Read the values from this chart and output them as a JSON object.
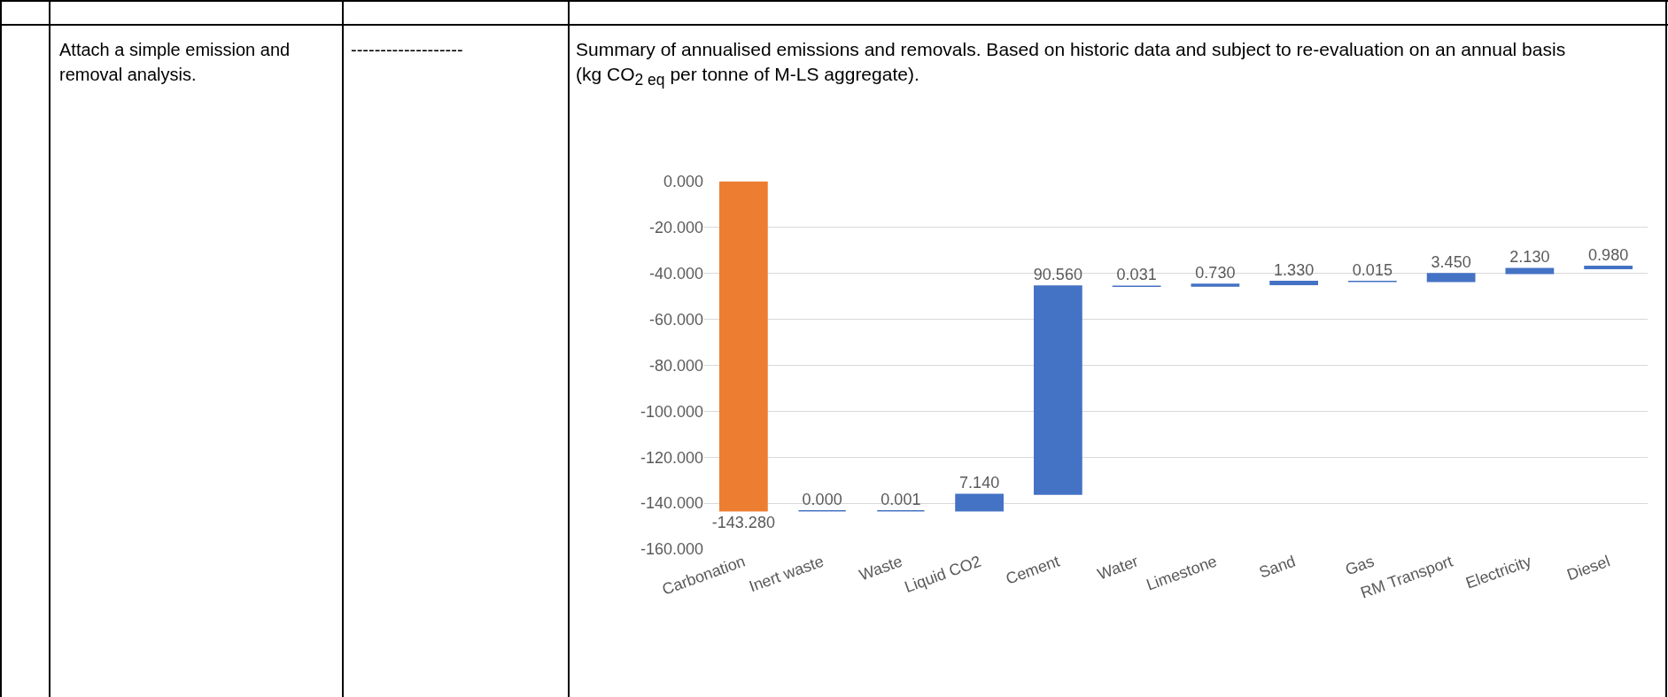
{
  "chart_data": {
    "type": "bar",
    "title": "Summary of annualised emissions and removals.  Based on historic data and subject to re-evaluation on an annual basis (kg CO$_{2 eq}$ per tonne of M-LS aggregate).",
    "annotations": [
      "Attach a simple emission and removal analysis.",
      "-------------------"
    ],
    "categories": [
      "Carbonation",
      "Inert waste",
      "Waste",
      "Liquid CO2",
      "Cement",
      "Water",
      "Limestone",
      "Sand",
      "Gas",
      "RM Transport",
      "Electricity",
      "Diesel"
    ],
    "values": [
      -143.28,
      0,
      0.001,
      7.14,
      90.56,
      0.031,
      0.73,
      1.33,
      0.015,
      3.45,
      2.13,
      0.98
    ],
    "base": [
      0,
      -143.3,
      -143.3,
      -143.3,
      -136.1,
      -45.6,
      -45.5,
      -44.8,
      -43.5,
      -43.5,
      -40.0,
      -37.9
    ],
    "colors": [
      "#ed7d31",
      "#4472c4",
      "#4472c4",
      "#4472c4",
      "#4472c4",
      "#4472c4",
      "#4472c4",
      "#4472c4",
      "#4472c4",
      "#4472c4",
      "#4472c4",
      "#4472c4"
    ],
    "value_labels": [
      "-143.280",
      "0.000",
      "0.001",
      "7.140",
      "90.560",
      "0.031",
      "0.730",
      "1.330",
      "0.015",
      "3.450",
      "2.130",
      "0.980"
    ],
    "ylim": [
      -160,
      0
    ],
    "yticks": [
      {
        "value": 0,
        "label": "0.000"
      },
      {
        "value": -20,
        "label": "-20.000"
      },
      {
        "value": -40,
        "label": "-40.000"
      },
      {
        "value": -60,
        "label": "-60.000"
      },
      {
        "value": -80,
        "label": "-80.000"
      },
      {
        "value": -100,
        "label": "-100.000"
      },
      {
        "value": -120,
        "label": "-120.000"
      },
      {
        "value": -140,
        "label": "-140.000"
      },
      {
        "value": -160,
        "label": "-160.000"
      }
    ],
    "grid": "y"
  }
}
